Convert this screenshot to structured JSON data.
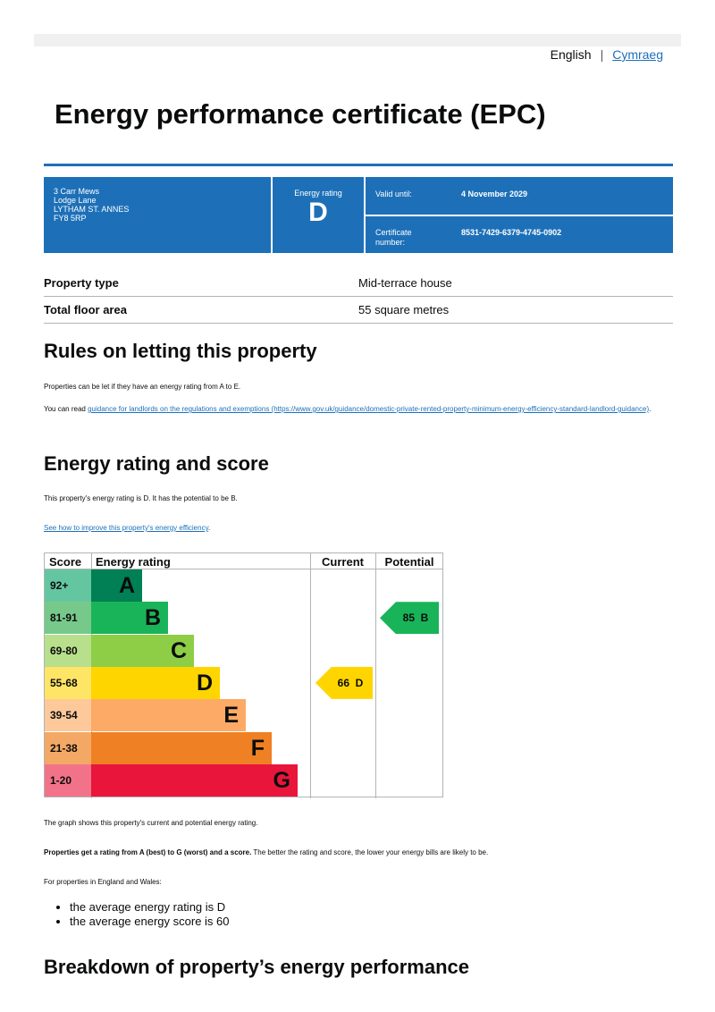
{
  "lang": {
    "english": "English",
    "welsh": "Cymraeg"
  },
  "title": "Energy performance certificate (EPC)",
  "summary": {
    "address": [
      "3 Carr Mews",
      "Lodge Lane",
      "LYTHAM ST. ANNES",
      "FY8 5RP"
    ],
    "rating_label": "Energy rating",
    "rating": "D",
    "valid_label": "Valid until:",
    "valid": "4 November 2029",
    "cert_label": "Certificate number:",
    "cert": "8531-7429-6379-4745-0902",
    "color": "#1d70b8"
  },
  "property": [
    {
      "label": "Property type",
      "value": "Mid-terrace house"
    },
    {
      "label": "Total floor area",
      "value": "55 square metres"
    }
  ],
  "rules": {
    "heading": "Rules on letting this property",
    "p1": "Properties can be let if they have an energy rating from A to E.",
    "p2_pre": "You can read ",
    "p2_link": "guidance for landlords on the regulations and exemptions (https://www.gov.uk/guidance/domestic-private-rented-property-minimum-energy-efficiency-standard-landlord-guidance)",
    "p2_post": "."
  },
  "score": {
    "heading": "Energy rating and score",
    "p1": "This property's energy rating is D. It has the potential to be B.",
    "link": "See how to improve this property's energy efficiency",
    "link_post": "."
  },
  "chart_data": {
    "type": "table",
    "headers": [
      "Score",
      "Energy rating",
      "Current",
      "Potential"
    ],
    "bands": [
      {
        "score": "92+",
        "letter": "A",
        "color": "#008054",
        "light": "#64c6a0"
      },
      {
        "score": "81-91",
        "letter": "B",
        "color": "#19b459",
        "light": "#77c98b"
      },
      {
        "score": "69-80",
        "letter": "C",
        "color": "#8dce46",
        "light": "#b8df8c"
      },
      {
        "score": "55-68",
        "letter": "D",
        "color": "#ffd500",
        "light": "#ffe566"
      },
      {
        "score": "39-54",
        "letter": "E",
        "color": "#fcaa65",
        "light": "#fdc99b"
      },
      {
        "score": "21-38",
        "letter": "F",
        "color": "#ef8023",
        "light": "#f4a866"
      },
      {
        "score": "1-20",
        "letter": "G",
        "color": "#e9153b",
        "light": "#f27389"
      }
    ],
    "current": {
      "score": 66,
      "letter": "D",
      "label": "66  D"
    },
    "potential": {
      "score": 85,
      "letter": "B",
      "label": "85  B"
    }
  },
  "after": {
    "p1": "The graph shows this property's current and potential energy rating.",
    "p2_bold": "Properties get a rating from A (best) to G (worst) and a score.",
    "p2_rest": " The better the rating and score, the lower your energy bills are likely to be.",
    "p3": "For properties in England and Wales:",
    "bullets": [
      "the average energy rating is D",
      "the average energy score is 60"
    ]
  },
  "breakdown": {
    "heading": "Breakdown of property’s energy performance"
  }
}
